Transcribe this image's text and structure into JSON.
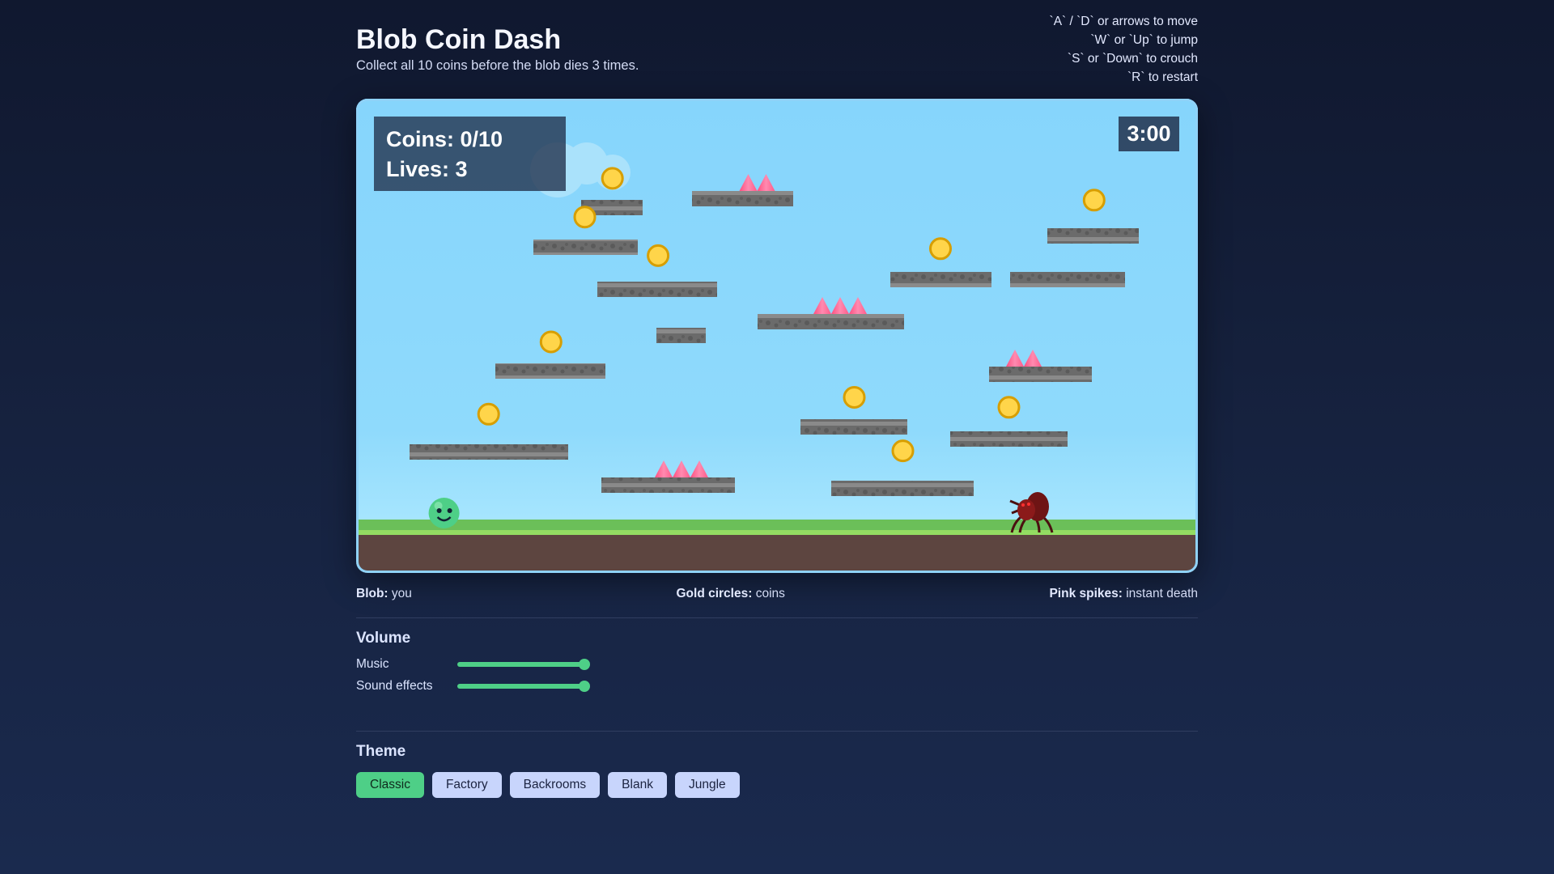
{
  "header": {
    "title": "Blob Coin Dash",
    "subtitle": "Collect all 10 coins before the blob dies 3 times."
  },
  "controls": [
    "`A` / `D` or arrows to move",
    "`W` or `Up` to jump",
    "`S` or `Down` to crouch",
    "`R` to restart"
  ],
  "hud": {
    "coins": "Coins: 0/10",
    "lives": "Lives: 3",
    "timer": "3:00"
  },
  "legend": [
    {
      "key": "Blob:",
      "value": "you"
    },
    {
      "key": "Gold circles:",
      "value": "coins"
    },
    {
      "key": "Pink spikes:",
      "value": "instant death"
    }
  ],
  "volume": {
    "title": "Volume",
    "music_label": "Music",
    "music_level": 1.0,
    "sfx_label": "Sound effects",
    "sfx_level": 1.0
  },
  "theme": {
    "title": "Theme",
    "options": [
      "Classic",
      "Factory",
      "Backrooms",
      "Blank",
      "Jungle"
    ],
    "selected": "Classic"
  },
  "colors": {
    "accent": "#4ecf87",
    "coin": "#ffd54a",
    "spike": "#ff5c8a",
    "platform": "#6b6b6b",
    "sky": "#87d6fc",
    "grass": "#6bbf59",
    "dirt": "#5d4540"
  }
}
